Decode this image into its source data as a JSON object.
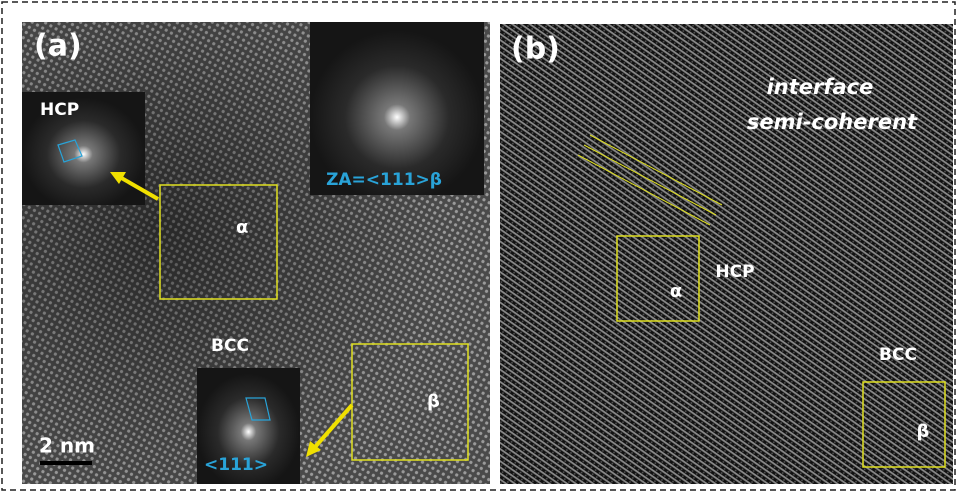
{
  "panel_a": {
    "label": "(a)",
    "hcp_inset": "HCP",
    "fft_label": "ZA=<111>β",
    "alpha": "α",
    "bcc": "BCC",
    "beta": "β",
    "zone": "<111>",
    "scale_bar": "2 nm"
  },
  "panel_b": {
    "label": "(b)",
    "annotation_line1": "interface",
    "annotation_line2": "semi-coherent",
    "hcp": "HCP",
    "alpha": "α",
    "bcc": "BCC",
    "beta": "β"
  }
}
